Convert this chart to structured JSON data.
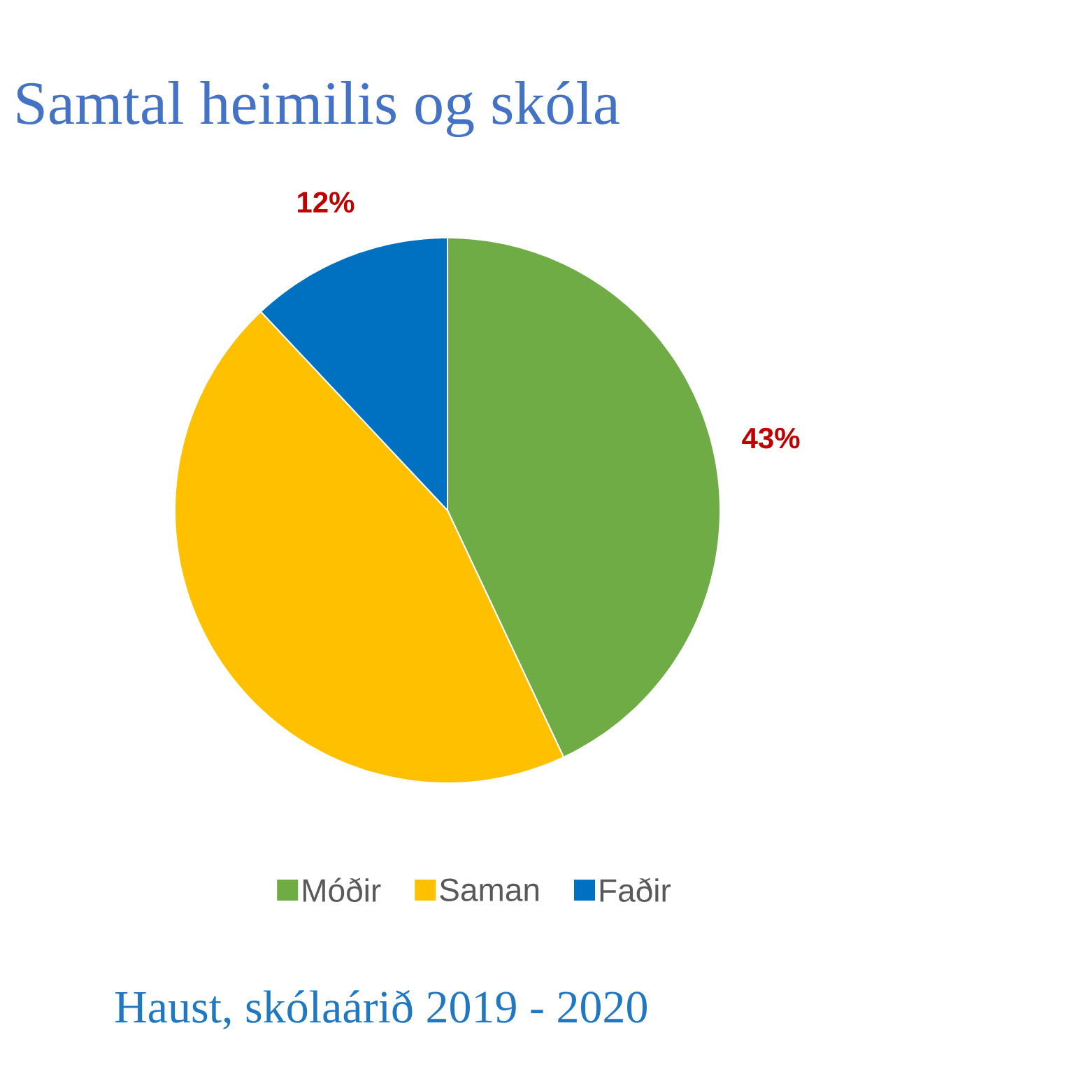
{
  "chart_data": {
    "type": "pie",
    "title": "Samtal heimilis og skóla",
    "categories": [
      "Móðir",
      "Saman",
      "Faðir"
    ],
    "values": [
      43,
      45,
      12
    ],
    "colors": [
      "#6fac46",
      "#ffc000",
      "#0070c0"
    ],
    "value_labels": [
      "43%",
      null,
      "12%"
    ],
    "legend": "bottom",
    "annotations": [
      "Haust, skólaárið 2019 - 2020"
    ]
  }
}
